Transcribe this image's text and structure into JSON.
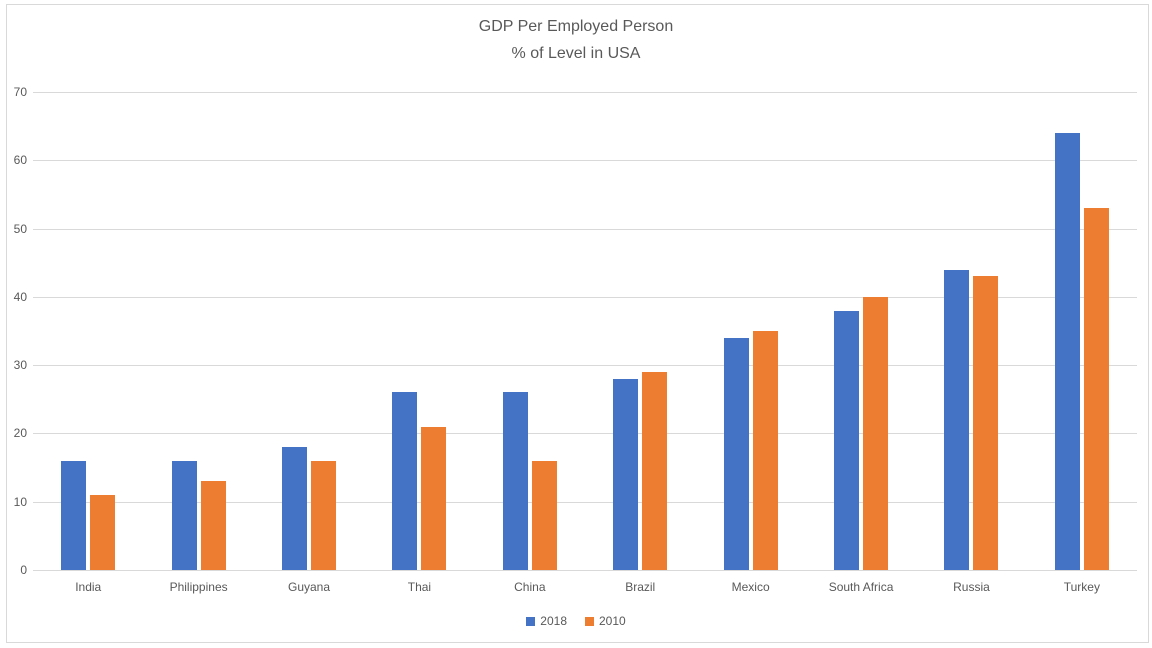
{
  "chart_data": {
    "type": "bar",
    "title": "GDP Per Employed Person",
    "subtitle": "% of Level in USA",
    "categories": [
      "India",
      "Philippines",
      "Guyana",
      "Thai",
      "China",
      "Brazil",
      "Mexico",
      "South Africa",
      "Russia",
      "Turkey"
    ],
    "series": [
      {
        "name": "2018",
        "color": "#4472C4",
        "values": [
          16,
          16,
          18,
          26,
          26,
          28,
          34,
          38,
          44,
          64
        ]
      },
      {
        "name": "2010",
        "color": "#ED7D31",
        "values": [
          11,
          13,
          16,
          21,
          16,
          29,
          35,
          40,
          43,
          53
        ]
      }
    ],
    "ylim": [
      0,
      70
    ],
    "ytick_step": 10,
    "yticks": [
      0,
      10,
      20,
      30,
      40,
      50,
      60,
      70
    ],
    "grid": true,
    "legend_position": "bottom"
  },
  "style_colors": {
    "series_2018": "#4472C4",
    "series_2010": "#ED7D31",
    "gridline": "#D9D9D9",
    "axis_line": "#D9D9D9",
    "frame_border": "#D9D9D9",
    "text": "#595959",
    "background": "#FFFFFF"
  }
}
